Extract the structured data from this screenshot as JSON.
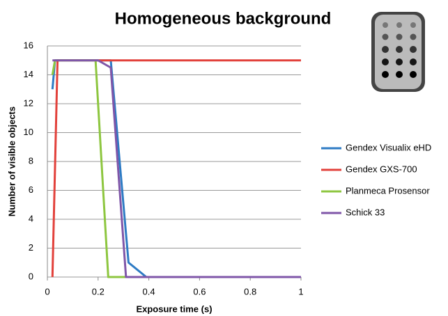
{
  "chart_data": {
    "type": "line",
    "title": "Homogeneous background",
    "x_label": "Exposure time (s)",
    "y_label": "Number of visible objects",
    "xlim": [
      0,
      1
    ],
    "xticks": [
      0,
      0.2,
      0.4,
      0.6,
      0.8,
      1
    ],
    "ylim": [
      0,
      16
    ],
    "yticks": [
      0,
      2,
      4,
      6,
      8,
      10,
      12,
      14,
      16
    ],
    "grid": true,
    "legend": "right",
    "series": [
      {
        "name": "Gendex Visualix eHD",
        "color": "#2e7bc4",
        "x": [
          0.02,
          0.03,
          0.25,
          0.32,
          0.39,
          1
        ],
        "values": [
          13,
          15,
          15,
          1,
          0,
          0
        ]
      },
      {
        "name": "Gendex GXS-700",
        "color": "#e2413b",
        "x": [
          0.02,
          0.04,
          1
        ],
        "values": [
          0,
          15,
          15
        ]
      },
      {
        "name": "Planmeca Prosensor",
        "color": "#8dc63f",
        "x": [
          0.02,
          0.03,
          0.19,
          0.24,
          1
        ],
        "values": [
          14,
          15,
          15,
          0,
          0
        ]
      },
      {
        "name": "Schick 33",
        "color": "#7f56a8",
        "x": [
          0.02,
          0.2,
          0.25,
          0.31,
          1
        ],
        "values": [
          15,
          15,
          14.5,
          0,
          0
        ]
      }
    ]
  }
}
